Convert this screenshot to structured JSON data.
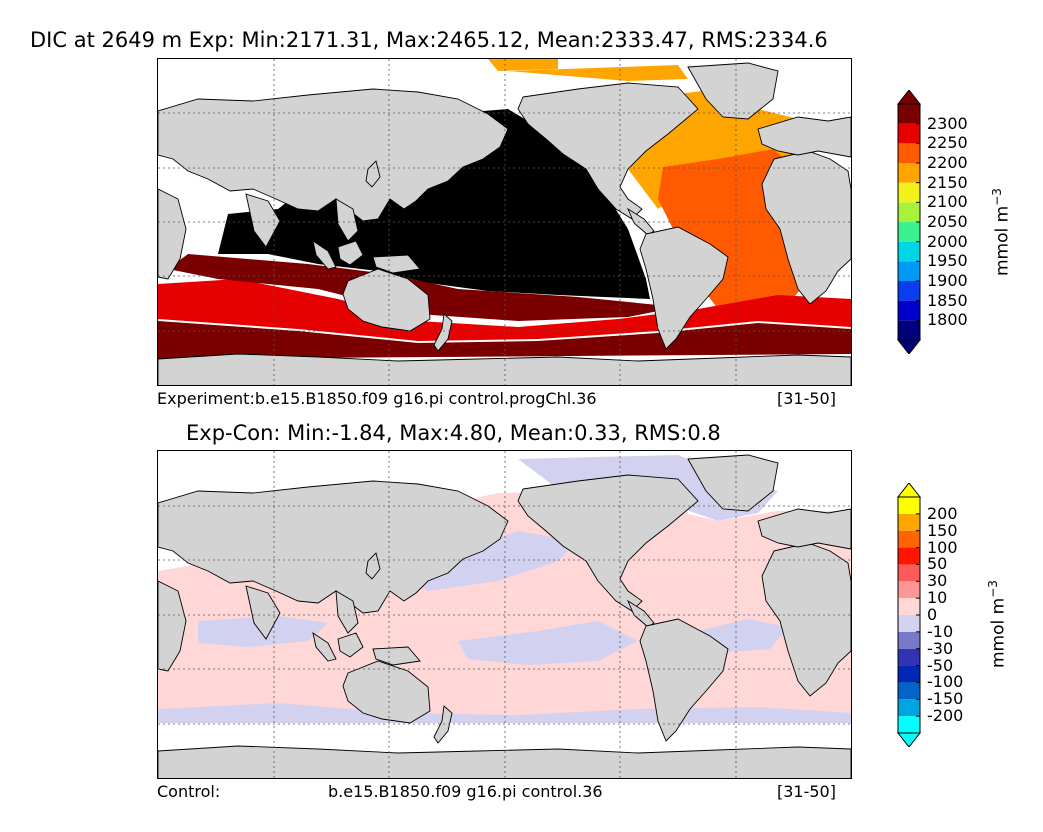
{
  "chart_data": [
    {
      "type": "heatmap",
      "title": "DIC at 2649 m Exp: Min:2171.31, Max:2465.12, Mean:2333.47, RMS:2334.6",
      "caption_left": "Experiment:b.e15.B1850.f09 g16.pi control.progChl.36",
      "caption_mid": "",
      "caption_right": "[31-50]",
      "colorbar": {
        "units": "mmol m",
        "units_exp": "−3",
        "levels": [
          "1800",
          "1850",
          "1900",
          "1950",
          "2000",
          "2050",
          "2100",
          "2150",
          "2200",
          "2250",
          "2300"
        ],
        "colors": [
          "#00007a",
          "#0000cd",
          "#0a3df0",
          "#0099f5",
          "#00d7e6",
          "#3bf28f",
          "#a7f23c",
          "#f2f21a",
          "#ffa500",
          "#ff5a00",
          "#e60000",
          "#7a0000"
        ],
        "extend": "both"
      }
    },
    {
      "type": "heatmap",
      "title": "Exp-Con: Min:-1.84, Max:4.80, Mean:0.33, RMS:0.8",
      "caption_left": "Control:",
      "caption_mid": "b.e15.B1850.f09 g16.pi control.36",
      "caption_right": "[31-50]",
      "colorbar": {
        "units": "mmol m",
        "units_exp": "−3",
        "levels": [
          "-200",
          "-150",
          "-100",
          "-50",
          "-30",
          "-10",
          "0",
          "10",
          "30",
          "50",
          "100",
          "150",
          "200"
        ],
        "colors": [
          "#00ffff",
          "#00a5e0",
          "#0064c8",
          "#0028b4",
          "#3232b4",
          "#7878c8",
          "#d2d2f0",
          "#ffd7d7",
          "#ff9696",
          "#ff5a5a",
          "#ff1400",
          "#ff6400",
          "#ffa500",
          "#ffff00"
        ],
        "extend": "both"
      }
    }
  ],
  "colors": {
    "land": "#d3d3d3",
    "ice": "#ffffff",
    "grid": "#555555",
    "exp_pacific": "#000000",
    "exp_atlantic": "#ff5a00",
    "exp_north_atlantic": "#ffa500",
    "exp_southern": "#7a0000",
    "exp_southern_band": "#e60000",
    "diff_positive": "#ffd7d7",
    "diff_negative": "#d2d2f0"
  }
}
